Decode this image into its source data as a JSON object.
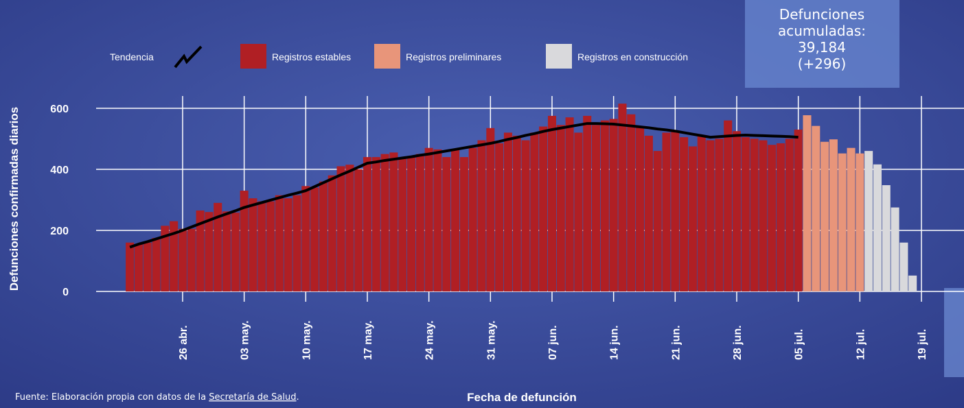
{
  "chart_data": {
    "type": "bar",
    "y_label": "Defunciones confirmadas diarios",
    "x_label": "Fecha de defunción",
    "legend": {
      "trend": "Tendencia"
    },
    "summary_box": [
      "Defunciones",
      "acumuladas:",
      "39,184",
      "(+296)"
    ],
    "source": {
      "text": "Fuente: Elaboración propia con datos de la",
      "link": "Secretaría de Salud",
      "end": "."
    },
    "categories": [
      null,
      null,
      null,
      null,
      null,
      null,
      "26 abr.",
      null,
      null,
      null,
      null,
      null,
      null,
      "03 may.",
      null,
      null,
      null,
      null,
      null,
      null,
      "10 may.",
      null,
      null,
      null,
      null,
      null,
      null,
      "17 may.",
      null,
      null,
      null,
      null,
      null,
      null,
      "24 may.",
      null,
      null,
      null,
      null,
      null,
      null,
      "31 may.",
      null,
      null,
      null,
      null,
      null,
      null,
      "07 jun.",
      null,
      null,
      null,
      null,
      null,
      null,
      "14 jun.",
      null,
      null,
      null,
      null,
      null,
      null,
      "21 jun.",
      null,
      null,
      null,
      null,
      null,
      null,
      "28 jun.",
      null,
      null,
      null,
      null,
      null,
      null,
      "05 jul.",
      null,
      null,
      null,
      null,
      null,
      null,
      "12 jul.",
      null,
      null,
      null,
      null,
      null,
      null,
      "19 jul."
    ],
    "series": [
      {
        "name": "Registros estables",
        "color": "#b01f24",
        "values": [
          160,
          155,
          160,
          175,
          215,
          230,
          205,
          205,
          265,
          260,
          290,
          262,
          258,
          330,
          305,
          295,
          295,
          315,
          305,
          315,
          345,
          340,
          360,
          380,
          410,
          415,
          400,
          440,
          440,
          450,
          455,
          435,
          440,
          450,
          470,
          465,
          440,
          465,
          440,
          470,
          495,
          535,
          485,
          520,
          510,
          495,
          520,
          540,
          575,
          545,
          570,
          520,
          575,
          545,
          560,
          565,
          615,
          580,
          540,
          510,
          460,
          520,
          525,
          505,
          475,
          510,
          495,
          500,
          560,
          525,
          505,
          500,
          495,
          480,
          485,
          500,
          530,
          null,
          null,
          null,
          null,
          null,
          null,
          null,
          null,
          null,
          null,
          null,
          null,
          null,
          null
        ]
      },
      {
        "name": "Registros preliminares",
        "color": "#e8957a",
        "values": [
          null,
          null,
          null,
          null,
          null,
          null,
          null,
          null,
          null,
          null,
          null,
          null,
          null,
          null,
          null,
          null,
          null,
          null,
          null,
          null,
          null,
          null,
          null,
          null,
          null,
          null,
          null,
          null,
          null,
          null,
          null,
          null,
          null,
          null,
          null,
          null,
          null,
          null,
          null,
          null,
          null,
          null,
          null,
          null,
          null,
          null,
          null,
          null,
          null,
          null,
          null,
          null,
          null,
          null,
          null,
          null,
          null,
          null,
          null,
          null,
          null,
          null,
          null,
          null,
          null,
          null,
          null,
          null,
          null,
          null,
          null,
          null,
          null,
          null,
          null,
          null,
          null,
          577,
          542,
          490,
          498,
          452,
          470,
          452,
          null,
          null,
          null,
          null,
          null,
          null,
          null
        ]
      },
      {
        "name": "Registros en construcción",
        "color": "#d9d9dc",
        "values": [
          null,
          null,
          null,
          null,
          null,
          null,
          null,
          null,
          null,
          null,
          null,
          null,
          null,
          null,
          null,
          null,
          null,
          null,
          null,
          null,
          null,
          null,
          null,
          null,
          null,
          null,
          null,
          null,
          null,
          null,
          null,
          null,
          null,
          null,
          null,
          null,
          null,
          null,
          null,
          null,
          null,
          null,
          null,
          null,
          null,
          null,
          null,
          null,
          null,
          null,
          null,
          null,
          null,
          null,
          null,
          null,
          null,
          null,
          null,
          null,
          null,
          null,
          null,
          null,
          null,
          null,
          null,
          null,
          null,
          null,
          null,
          null,
          null,
          null,
          null,
          null,
          null,
          null,
          null,
          null,
          null,
          null,
          null,
          null,
          460,
          416,
          348,
          275,
          160,
          52,
          null
        ]
      }
    ],
    "trend": {
      "color": "#000000",
      "values": [
        145,
        155,
        163,
        172,
        181,
        190,
        200,
        211,
        222,
        233,
        244,
        254,
        264,
        275,
        283,
        291,
        299,
        307,
        315,
        322,
        330,
        343,
        356,
        369,
        382,
        394,
        407,
        420,
        424,
        429,
        433,
        437,
        441,
        446,
        450,
        455,
        460,
        465,
        470,
        475,
        480,
        485,
        491,
        498,
        504,
        511,
        517,
        524,
        530,
        535,
        540,
        545,
        550,
        550,
        549,
        548,
        545,
        542,
        539,
        536,
        532,
        529,
        525,
        520,
        515,
        510,
        505,
        507,
        509,
        511,
        512,
        511,
        510,
        509,
        508,
        507,
        505,
        null,
        null,
        null,
        null,
        null,
        null,
        null,
        null,
        null,
        null,
        null,
        null,
        null,
        null
      ]
    },
    "ylim": [
      0,
      640
    ],
    "yticks": [
      0,
      200,
      400,
      600
    ],
    "grid": true
  }
}
